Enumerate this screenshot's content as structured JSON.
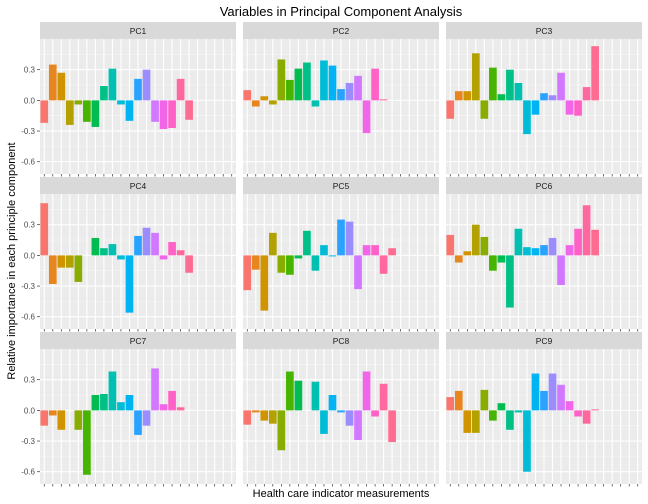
{
  "chart_data": {
    "type": "bar",
    "title": "Variables in Principal Component Analysis",
    "xlabel": "Health care indicator measurements",
    "ylabel": "Relative importance in each principle component",
    "ylim": [
      -0.72,
      0.6
    ],
    "yticks": [
      -0.6,
      -0.3,
      0.0,
      0.3
    ],
    "ytick_labels": [
      "-0.6",
      "-0.3",
      "0.0",
      "0.3"
    ],
    "grid": true,
    "legend": "none",
    "n_variables": 23,
    "colors": [
      "#F8766D",
      "#E7851E",
      "#D09400",
      "#B2A100",
      "#89AC00",
      "#45B500",
      "#00BC51",
      "#00C087",
      "#00C0B2",
      "#00BCD6",
      "#00B3F2",
      "#29A3FF",
      "#9C8DFF",
      "#D277FF",
      "#F166E8",
      "#FF61C7",
      "#FF689E",
      "#FF6C91",
      "#F8766D",
      "#E7851E",
      "#D09400",
      "#B2A100",
      "#89AC00"
    ],
    "panels": [
      {
        "name": "PC1",
        "values": [
          -0.22,
          0.35,
          0.27,
          -0.24,
          -0.04,
          -0.21,
          -0.26,
          0.14,
          0.31,
          -0.04,
          -0.2,
          0.21,
          0.3,
          -0.21,
          -0.28,
          -0.27,
          0.21,
          -0.19,
          0,
          0,
          0,
          0,
          0
        ]
      },
      {
        "name": "PC2",
        "values": [
          0.1,
          -0.06,
          0.04,
          -0.04,
          0.4,
          0.2,
          0.31,
          0.37,
          -0.06,
          0.39,
          0.34,
          0.11,
          0.17,
          0.24,
          -0.32,
          0.31,
          0.01,
          0,
          0,
          0,
          0,
          0,
          0
        ]
      },
      {
        "name": "PC3",
        "values": [
          -0.18,
          0.09,
          0.09,
          0.46,
          -0.18,
          0.32,
          0.06,
          0.3,
          0.17,
          -0.33,
          -0.14,
          0.07,
          0.05,
          0.27,
          -0.14,
          -0.15,
          0.13,
          0.53,
          0,
          0,
          0,
          0,
          0
        ]
      },
      {
        "name": "PC4",
        "values": [
          0.51,
          -0.28,
          -0.12,
          -0.12,
          -0.26,
          0.0,
          0.17,
          0.07,
          0.11,
          -0.04,
          -0.56,
          0.19,
          0.27,
          0.22,
          -0.04,
          0.13,
          0.05,
          -0.17,
          0,
          0,
          0,
          0,
          0
        ]
      },
      {
        "name": "PC5",
        "values": [
          -0.34,
          -0.14,
          -0.54,
          0.22,
          -0.17,
          -0.19,
          -0.03,
          0.24,
          -0.15,
          0.1,
          -0.01,
          0.35,
          0.33,
          -0.33,
          0.1,
          0.1,
          -0.18,
          0.07,
          0,
          0,
          0,
          0,
          0
        ]
      },
      {
        "name": "PC6",
        "values": [
          0.2,
          -0.07,
          0.04,
          0.3,
          0.18,
          -0.15,
          -0.07,
          -0.51,
          0.26,
          0.08,
          0.07,
          0.1,
          0.17,
          -0.29,
          0.1,
          0.26,
          0.49,
          0.25,
          0,
          0,
          0,
          0,
          0
        ]
      },
      {
        "name": "PC7",
        "values": [
          -0.15,
          -0.05,
          -0.19,
          0.0,
          -0.19,
          -0.63,
          0.15,
          0.16,
          0.38,
          0.08,
          0.15,
          -0.24,
          -0.15,
          0.41,
          0.06,
          0.19,
          0.03,
          0,
          0,
          0,
          0,
          0,
          0
        ]
      },
      {
        "name": "PC8",
        "values": [
          -0.14,
          -0.02,
          -0.1,
          -0.13,
          -0.39,
          0.38,
          0.29,
          0.0,
          0.28,
          -0.23,
          0.15,
          -0.02,
          -0.15,
          -0.29,
          0.38,
          -0.06,
          0.26,
          -0.31,
          0,
          0,
          0,
          0,
          0
        ]
      },
      {
        "name": "PC9",
        "values": [
          0.13,
          0.19,
          -0.22,
          -0.22,
          0.2,
          -0.1,
          0.07,
          -0.19,
          -0.02,
          -0.6,
          0.36,
          0.19,
          0.36,
          0.25,
          0.09,
          -0.06,
          -0.13,
          0.01,
          0,
          0,
          0,
          0,
          0
        ]
      }
    ]
  }
}
